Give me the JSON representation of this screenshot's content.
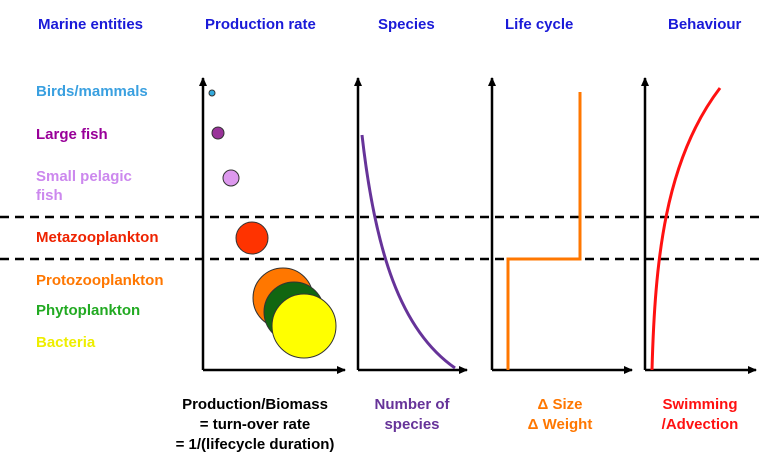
{
  "headers": [
    "Marine entities",
    "Production rate",
    "Species",
    "Life cycle",
    "Behaviour"
  ],
  "entities": [
    {
      "lines": [
        "Birds/mammals"
      ]
    },
    {
      "lines": [
        "Large fish"
      ]
    },
    {
      "lines": [
        "Small pelagic",
        "fish"
      ]
    },
    {
      "lines": [
        "Metazooplankton"
      ]
    },
    {
      "lines": [
        "Protozooplankton"
      ]
    },
    {
      "lines": [
        "Phytoplankton"
      ]
    },
    {
      "lines": [
        "Bacteria"
      ]
    }
  ],
  "axis_labels": [
    {
      "lines": [
        "Production/Biomass",
        "= turn-over rate",
        "= 1/(lifecycle duration)"
      ]
    },
    {
      "lines": [
        "Number of",
        "species"
      ]
    },
    {
      "lines": [
        "Δ Size",
        "Δ Weight"
      ]
    },
    {
      "lines": [
        "Swimming",
        "/Advection"
      ]
    }
  ]
}
